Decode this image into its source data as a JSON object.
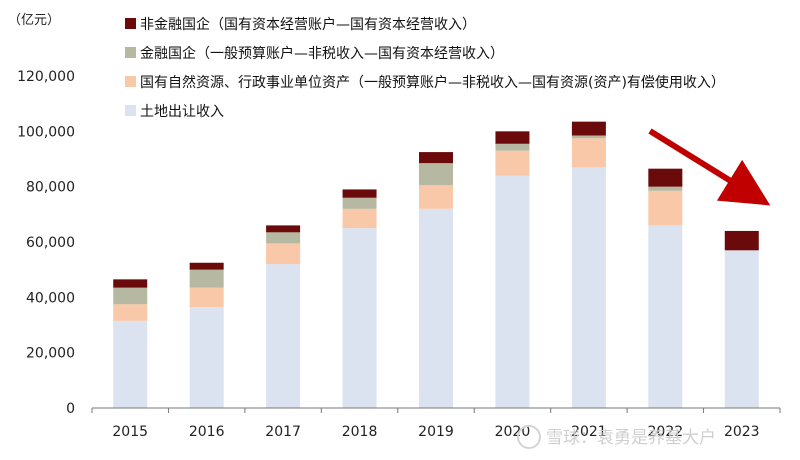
{
  "chart_data": {
    "type": "bar",
    "stacked": true,
    "unit_label": "（亿元）",
    "categories": [
      "2015",
      "2016",
      "2017",
      "2018",
      "2019",
      "2020",
      "2021",
      "2022",
      "2023"
    ],
    "ylim": [
      0,
      120000
    ],
    "yticks": [
      "0",
      "20,000",
      "40,000",
      "60,000",
      "80,000",
      "100,000",
      "120,000"
    ],
    "legend_position": "top-left",
    "series": [
      {
        "name": "土地出让收入",
        "color": "#dbe3f0",
        "values": [
          31500,
          36500,
          52000,
          65000,
          72000,
          84000,
          87000,
          66000,
          57000
        ]
      },
      {
        "name": "国有自然资源、行政事业单位资产（一般预算账户—非税收入—国有资源(资产)有偿使用收入）",
        "color": "#f8c8a8",
        "values": [
          6000,
          7000,
          7500,
          7000,
          8500,
          9000,
          10500,
          12500,
          0
        ]
      },
      {
        "name": "金融国企（一般预算账户—非税收入—国有资本经营收入）",
        "color": "#b7b8a2",
        "values": [
          6000,
          6500,
          4000,
          4000,
          8000,
          2500,
          1000,
          1500,
          0
        ]
      },
      {
        "name": "非金融国企（国有资本经营账户—国有资本经营收入）",
        "color": "#6b0a0a",
        "values": [
          3000,
          2500,
          2500,
          3000,
          4000,
          4500,
          5000,
          6500,
          7000
        ]
      }
    ],
    "annotation": {
      "type": "trend-arrow",
      "direction": "down",
      "color": "#c00000"
    }
  },
  "watermark": {
    "text": "雪球：袁勇是养基大户"
  }
}
